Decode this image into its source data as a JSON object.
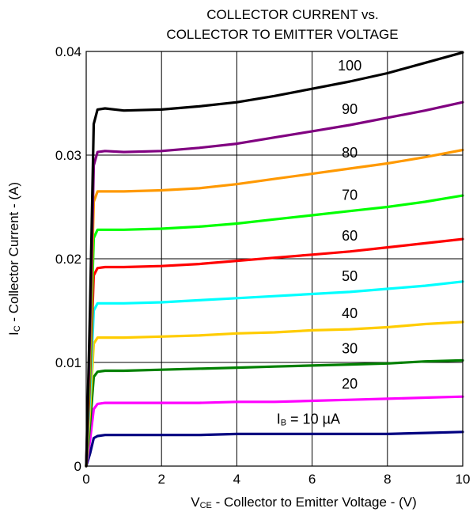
{
  "chart_data": {
    "type": "line",
    "title_lines": [
      "COLLECTOR CURRENT vs.",
      "COLLECTOR TO EMITTER VOLTAGE"
    ],
    "xlabel": {
      "main": "V",
      "sub": "CE",
      "rest": " - Collector to Emitter Voltage - (V)"
    },
    "ylabel": {
      "main": "I",
      "sub": "C",
      "rest": " - Collector Current - (A)"
    },
    "xlim": [
      0,
      10
    ],
    "ylim": [
      0,
      0.04
    ],
    "x_ticks": [
      0,
      2,
      4,
      6,
      8,
      10
    ],
    "x_tick_labels": [
      "0",
      "2",
      "4",
      "6",
      "8",
      "10"
    ],
    "y_ticks": [
      0,
      0.01,
      0.02,
      0.03,
      0.04
    ],
    "y_tick_labels": [
      "0",
      "0.01",
      "0.02",
      "0.03",
      "0.04"
    ],
    "grid": true,
    "series": [
      {
        "name": "10",
        "label": {
          "pre": "I",
          "sub": "B",
          "rest": " = 10 µA"
        },
        "color": "#000080",
        "x": [
          0,
          0.1,
          0.2,
          0.3,
          0.5,
          1,
          2,
          3,
          4,
          5,
          6,
          7,
          8,
          9,
          10
        ],
        "y": [
          0,
          0.0012,
          0.0027,
          0.0029,
          0.003,
          0.003,
          0.003,
          0.003,
          0.0031,
          0.0031,
          0.0031,
          0.0031,
          0.0031,
          0.0032,
          0.0033
        ]
      },
      {
        "name": "20",
        "label": {
          "pre": "",
          "sub": "",
          "rest": "20"
        },
        "color": "#FF00FF",
        "x": [
          0,
          0.1,
          0.2,
          0.3,
          0.5,
          1,
          2,
          3,
          4,
          5,
          6,
          7,
          8,
          9,
          10
        ],
        "y": [
          0,
          0.0025,
          0.0055,
          0.006,
          0.0061,
          0.0061,
          0.0061,
          0.0061,
          0.0062,
          0.0062,
          0.0063,
          0.0064,
          0.0065,
          0.0066,
          0.0067
        ]
      },
      {
        "name": "30",
        "label": {
          "pre": "",
          "sub": "",
          "rest": "30"
        },
        "color": "#008000",
        "x": [
          0,
          0.1,
          0.2,
          0.3,
          0.5,
          1,
          2,
          3,
          4,
          5,
          6,
          7,
          8,
          9,
          10
        ],
        "y": [
          0,
          0.004,
          0.0086,
          0.0091,
          0.0092,
          0.0092,
          0.0093,
          0.0094,
          0.0095,
          0.0096,
          0.0097,
          0.0098,
          0.0099,
          0.0101,
          0.0102
        ]
      },
      {
        "name": "40",
        "label": {
          "pre": "",
          "sub": "",
          "rest": "40"
        },
        "color": "#FFCC00",
        "x": [
          0,
          0.1,
          0.2,
          0.3,
          0.5,
          1,
          2,
          3,
          4,
          5,
          6,
          7,
          8,
          9,
          10
        ],
        "y": [
          0,
          0.0055,
          0.0118,
          0.0124,
          0.0124,
          0.0124,
          0.0125,
          0.0126,
          0.0128,
          0.0129,
          0.0131,
          0.0132,
          0.0134,
          0.0137,
          0.0139
        ]
      },
      {
        "name": "50",
        "label": {
          "pre": "",
          "sub": "",
          "rest": "50"
        },
        "color": "#00FFFF",
        "x": [
          0,
          0.1,
          0.2,
          0.3,
          0.5,
          1,
          2,
          3,
          4,
          5,
          6,
          7,
          8,
          9,
          10
        ],
        "y": [
          0,
          0.007,
          0.015,
          0.0157,
          0.0157,
          0.0157,
          0.0158,
          0.016,
          0.0162,
          0.0164,
          0.0166,
          0.0168,
          0.0171,
          0.0174,
          0.0178
        ]
      },
      {
        "name": "60",
        "label": {
          "pre": "",
          "sub": "",
          "rest": "60"
        },
        "color": "#FF0000",
        "x": [
          0,
          0.1,
          0.2,
          0.3,
          0.5,
          1,
          2,
          3,
          4,
          5,
          6,
          7,
          8,
          9,
          10
        ],
        "y": [
          0,
          0.0085,
          0.0184,
          0.0191,
          0.0192,
          0.0192,
          0.0193,
          0.0195,
          0.0198,
          0.0201,
          0.0204,
          0.0207,
          0.0211,
          0.0215,
          0.0219
        ]
      },
      {
        "name": "70",
        "label": {
          "pre": "",
          "sub": "",
          "rest": "70"
        },
        "color": "#00FF00",
        "x": [
          0,
          0.1,
          0.2,
          0.3,
          0.5,
          1,
          2,
          3,
          4,
          5,
          6,
          7,
          8,
          9,
          10
        ],
        "y": [
          0,
          0.01,
          0.022,
          0.0228,
          0.0228,
          0.0228,
          0.0229,
          0.0231,
          0.0234,
          0.0238,
          0.0242,
          0.0246,
          0.025,
          0.0255,
          0.0261
        ]
      },
      {
        "name": "80",
        "label": {
          "pre": "",
          "sub": "",
          "rest": "80"
        },
        "color": "#FF9900",
        "x": [
          0,
          0.1,
          0.2,
          0.3,
          0.5,
          1,
          2,
          3,
          4,
          5,
          6,
          7,
          8,
          9,
          10
        ],
        "y": [
          0,
          0.0115,
          0.0255,
          0.0265,
          0.0265,
          0.0265,
          0.0266,
          0.0268,
          0.0272,
          0.0277,
          0.0282,
          0.0287,
          0.0292,
          0.0298,
          0.0305
        ]
      },
      {
        "name": "90",
        "label": {
          "pre": "",
          "sub": "",
          "rest": "90"
        },
        "color": "#800080",
        "x": [
          0,
          0.1,
          0.2,
          0.3,
          0.5,
          1,
          2,
          3,
          4,
          5,
          6,
          7,
          8,
          9,
          10
        ],
        "y": [
          0,
          0.013,
          0.029,
          0.0303,
          0.0304,
          0.0303,
          0.0304,
          0.0307,
          0.0311,
          0.0317,
          0.0323,
          0.0329,
          0.0336,
          0.0343,
          0.0351
        ]
      },
      {
        "name": "100",
        "label": {
          "pre": "",
          "sub": "",
          "rest": "100"
        },
        "color": "#000000",
        "x": [
          0,
          0.1,
          0.2,
          0.3,
          0.5,
          1,
          2,
          3,
          4,
          5,
          6,
          7,
          8,
          9,
          10
        ],
        "y": [
          0,
          0.015,
          0.033,
          0.0344,
          0.0345,
          0.0343,
          0.0344,
          0.0347,
          0.0351,
          0.0357,
          0.0364,
          0.0371,
          0.0379,
          0.0389,
          0.0399
        ]
      }
    ]
  }
}
